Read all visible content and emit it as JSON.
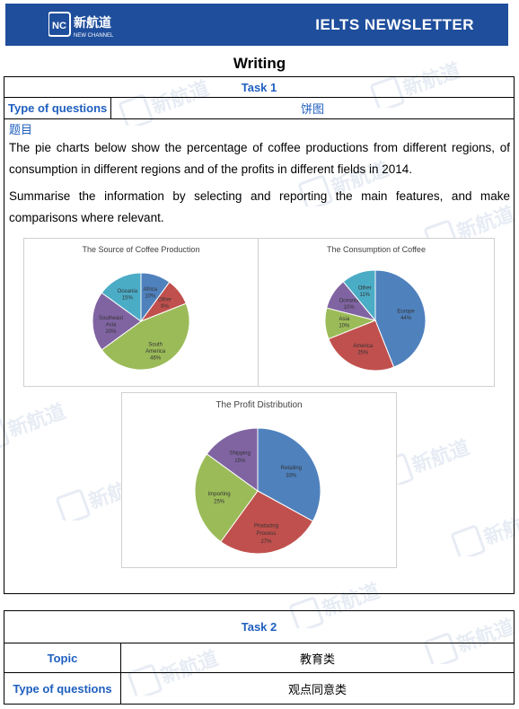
{
  "header": {
    "logo_cn": "新航道",
    "logo_en": "NEW CHANNEL",
    "logo_mark": "NC",
    "newsletter": "IELTS  NEWSLETTER",
    "bg_color": "#1f4e9c"
  },
  "section_title": "Writing",
  "task1": {
    "label": "Task 1",
    "type_label": "Type of questions",
    "type_value": "饼图",
    "question_label": "题目",
    "paragraph1": "The pie charts below show the percentage of coffee productions from different regions, of consumption in different regions and of the profits in different fields in 2014.",
    "paragraph2": "Summarise the information by selecting and reporting the main features, and make comparisons where relevant."
  },
  "chart_data": [
    {
      "type": "pie",
      "title": "The Source of Coffee Production",
      "categories": [
        "Africa",
        "Other",
        "South America",
        "Southeast Asia",
        "Oceania"
      ],
      "values": [
        10,
        9,
        46,
        20,
        15
      ],
      "colors": [
        "#4f81bd",
        "#c0504d",
        "#9bbb59",
        "#8064a2",
        "#4bacc6"
      ]
    },
    {
      "type": "pie",
      "title": "The Consumption of Coffee",
      "categories": [
        "Europe",
        "America",
        "Asia",
        "Oceania",
        "Other"
      ],
      "values": [
        44,
        25,
        10,
        10,
        11
      ],
      "colors": [
        "#4f81bd",
        "#c0504d",
        "#9bbb59",
        "#8064a2",
        "#4bacc6"
      ]
    },
    {
      "type": "pie",
      "title": "The Profit Distribution",
      "categories": [
        "Retailing",
        "Producing Process",
        "Importing",
        "Shipping"
      ],
      "values": [
        33,
        27,
        25,
        15
      ],
      "colors": [
        "#4f81bd",
        "#c0504d",
        "#9bbb59",
        "#8064a2"
      ]
    }
  ],
  "task2": {
    "label": "Task 2",
    "topic_label": "Topic",
    "topic_value": "教育类",
    "type_label": "Type of questions",
    "type_value": "观点同意类"
  }
}
